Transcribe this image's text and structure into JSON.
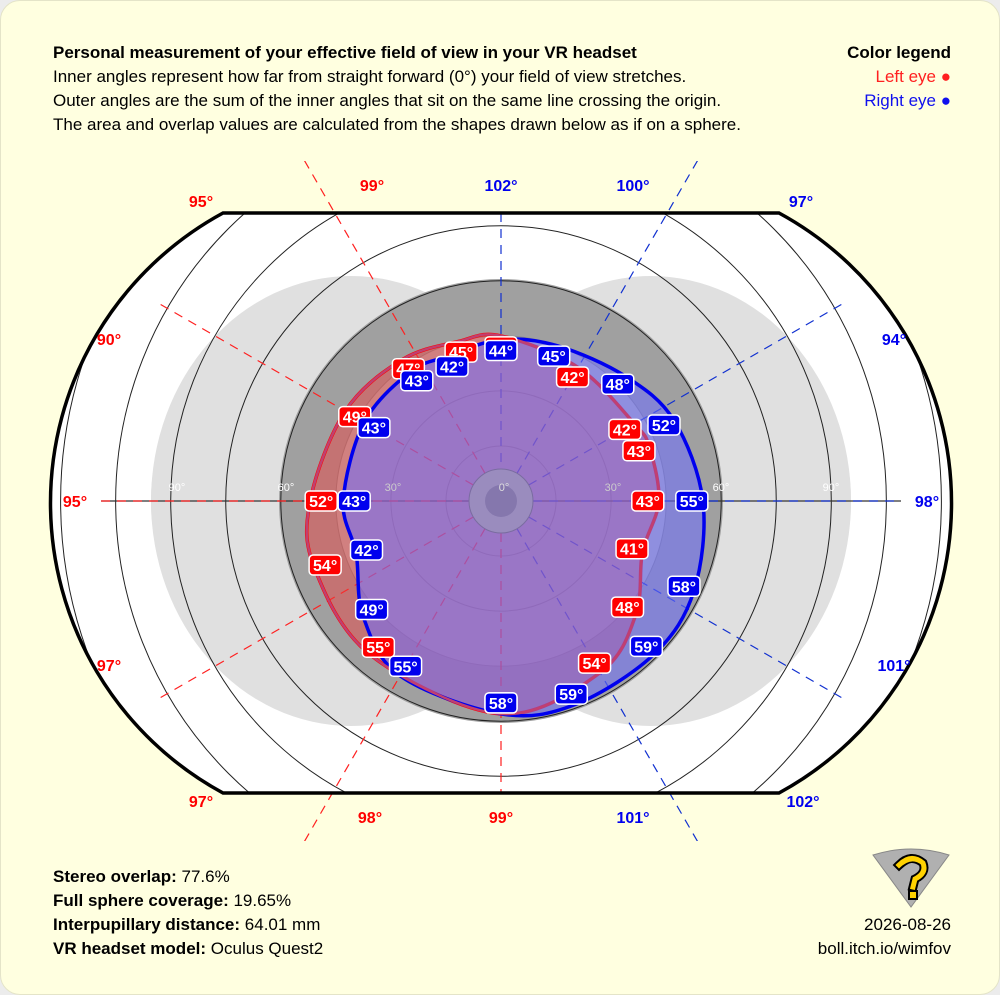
{
  "header": {
    "title": "Personal measurement of your effective field of view in your VR headset",
    "lines": [
      "Inner angles represent how far from straight forward (0°) your field of view stretches.",
      "Outer angles are the sum of the inner angles that sit on the same line crossing the origin.",
      "The area and overlap values are calculated from the shapes drawn below as if on a sphere."
    ]
  },
  "legend": {
    "title": "Color legend",
    "left_label": "Left eye ●",
    "right_label": "Right eye ●",
    "left_color": "#ff0000",
    "right_color": "#0000ee"
  },
  "chart_data": {
    "type": "polar-fov",
    "ring_labels": [
      "0°",
      "30°",
      "60°",
      "90°"
    ],
    "outer_angles_left": [
      "95°",
      "99°",
      "90°",
      "95°",
      "97°",
      "97°",
      "98°",
      "99°"
    ],
    "outer_angles_right": [
      "102°",
      "100°",
      "97°",
      "94°",
      "98°",
      "101°",
      "102°",
      "101°"
    ],
    "left_eye": [
      {
        "angle_deg": 90,
        "value": 45,
        "label": "45°"
      },
      {
        "angle_deg": 60,
        "value": 42,
        "label": "42°"
      },
      {
        "angle_deg": 30,
        "value": 42,
        "label": "42°"
      },
      {
        "angle_deg": 20,
        "value": 43,
        "label": "43°"
      },
      {
        "angle_deg": 0,
        "value": 43,
        "label": "43°"
      },
      {
        "angle_deg": -20,
        "value": 41,
        "label": "41°"
      },
      {
        "angle_deg": -40,
        "value": 48,
        "label": "48°"
      },
      {
        "angle_deg": -60,
        "value": 54,
        "label": "54°"
      },
      {
        "angle_deg": -90,
        "value": 58,
        "label": "58°"
      },
      {
        "angle_deg": -130,
        "value": 55,
        "label": "55°"
      },
      {
        "angle_deg": -160,
        "value": 54,
        "label": "54°"
      },
      {
        "angle_deg": 180,
        "value": 52,
        "label": "52°"
      },
      {
        "angle_deg": 150,
        "value": 49,
        "label": "49°"
      },
      {
        "angle_deg": 125,
        "value": 47,
        "label": "47°"
      },
      {
        "angle_deg": 105,
        "value": 45,
        "label": "45°"
      }
    ],
    "right_eye": [
      {
        "angle_deg": 90,
        "value": 44,
        "label": "44°"
      },
      {
        "angle_deg": 70,
        "value": 45,
        "label": "45°"
      },
      {
        "angle_deg": 45,
        "value": 48,
        "label": "48°"
      },
      {
        "angle_deg": 25,
        "value": 52,
        "label": "52°"
      },
      {
        "angle_deg": 0,
        "value": 55,
        "label": "55°"
      },
      {
        "angle_deg": -25,
        "value": 58,
        "label": "58°"
      },
      {
        "angle_deg": -45,
        "value": 59,
        "label": "59°"
      },
      {
        "angle_deg": -70,
        "value": 59,
        "label": "59°"
      },
      {
        "angle_deg": -90,
        "value": 58,
        "label": "58°"
      },
      {
        "angle_deg": -120,
        "value": 55,
        "label": "55°"
      },
      {
        "angle_deg": -140,
        "value": 49,
        "label": "49°"
      },
      {
        "angle_deg": -160,
        "value": 42,
        "label": "42°"
      },
      {
        "angle_deg": 180,
        "value": 43,
        "label": "43°"
      },
      {
        "angle_deg": 150,
        "value": 43,
        "label": "43°"
      },
      {
        "angle_deg": 125,
        "value": 43,
        "label": "43°"
      },
      {
        "angle_deg": 110,
        "value": 42,
        "label": "42°"
      }
    ]
  },
  "stats": {
    "stereo_overlap_label": "Stereo overlap:",
    "stereo_overlap_value": "77.6%",
    "sphere_label": "Full sphere coverage:",
    "sphere_value": "19.65%",
    "ipd_label": "Interpupillary distance:",
    "ipd_value": "64.01 mm",
    "model_label": "VR headset model:",
    "model_value": "Oculus Quest2"
  },
  "footer": {
    "date": "2026-08-26",
    "url": "boll.itch.io/wimfov"
  }
}
